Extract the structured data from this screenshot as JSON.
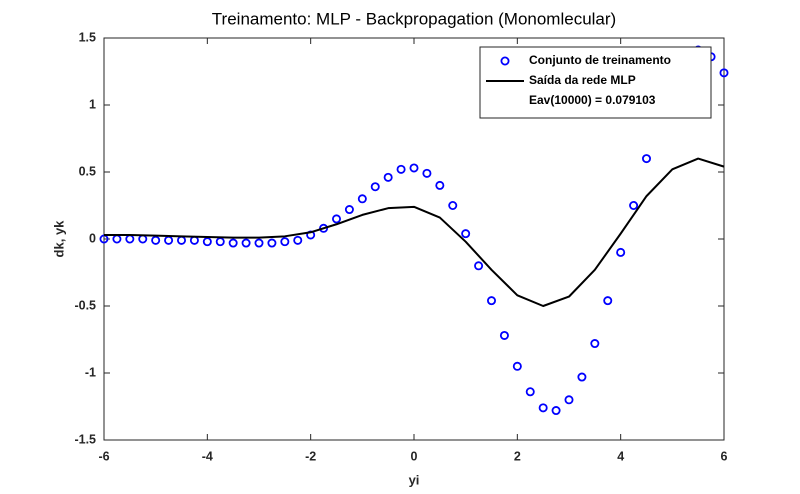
{
  "chart_data": {
    "type": "scatter_line",
    "title": "Treinamento: MLP - Backpropagation (Monomlecular)",
    "x_label": "yi",
    "y_label": "dk, yk",
    "xlim": [
      -6,
      6
    ],
    "xticks": [
      -6,
      -4,
      -2,
      0,
      2,
      4,
      6
    ],
    "ylim": [
      -1.5,
      1.5
    ],
    "yticks": [
      -1.5,
      -1,
      -0.5,
      0,
      0.5,
      1,
      1.5
    ],
    "legend_position": "northeast",
    "legend_note": "Eav(10000) = 0.079103",
    "series": [
      {
        "name": "Conjunto de treinamento",
        "kind": "markers",
        "color": "#0000ff",
        "x": [
          -6,
          -5.75,
          -5.5,
          -5.25,
          -5,
          -4.75,
          -4.5,
          -4.25,
          -4,
          -3.75,
          -3.5,
          -3.25,
          -3,
          -2.75,
          -2.5,
          -2.25,
          -2,
          -1.75,
          -1.5,
          -1.25,
          -1,
          -0.75,
          -0.5,
          -0.25,
          0,
          0.25,
          0.5,
          0.75,
          1,
          1.25,
          1.5,
          1.75,
          2,
          2.25,
          2.5,
          2.75,
          3,
          3.25,
          3.5,
          3.75,
          4,
          4.25,
          4.5,
          4.75,
          5,
          5.25,
          5.5,
          5.75,
          6
        ],
        "values": [
          0,
          0,
          0,
          0,
          -0.01,
          -0.01,
          -0.01,
          -0.01,
          -0.02,
          -0.02,
          -0.03,
          -0.03,
          -0.03,
          -0.03,
          -0.02,
          -0.01,
          0.03,
          0.08,
          0.15,
          0.22,
          0.3,
          0.39,
          0.46,
          0.52,
          0.53,
          0.49,
          0.4,
          0.25,
          0.04,
          -0.2,
          -0.46,
          -0.72,
          -0.95,
          -1.14,
          -1.26,
          -1.28,
          -1.2,
          -1.03,
          -0.78,
          -0.46,
          -0.1,
          0.25,
          0.6,
          0.95,
          1.2,
          1.37,
          1.41,
          1.36,
          1.24
        ]
      },
      {
        "name": "Saída da rede MLP",
        "kind": "line",
        "color": "#000000",
        "x": [
          -6,
          -5.5,
          -5,
          -4.5,
          -4,
          -3.5,
          -3,
          -2.5,
          -2,
          -1.5,
          -1,
          -0.5,
          0,
          0.5,
          1,
          1.5,
          2,
          2.5,
          3,
          3.5,
          4,
          4.5,
          5,
          5.5,
          6
        ],
        "values": [
          0.03,
          0.03,
          0.025,
          0.02,
          0.015,
          0.01,
          0.01,
          0.02,
          0.05,
          0.11,
          0.18,
          0.23,
          0.24,
          0.16,
          -0.02,
          -0.23,
          -0.42,
          -0.5,
          -0.43,
          -0.23,
          0.04,
          0.32,
          0.52,
          0.6,
          0.54
        ]
      }
    ]
  }
}
